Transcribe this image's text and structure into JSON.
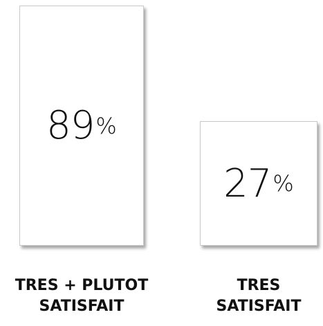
{
  "cards": [
    {
      "value": 89,
      "unit": "%",
      "label": [
        "TRES + PLUTOT",
        "SATISFAIT"
      ]
    },
    {
      "value": 27,
      "unit": "%",
      "label": [
        "TRES",
        "SATISFAIT"
      ]
    }
  ]
}
